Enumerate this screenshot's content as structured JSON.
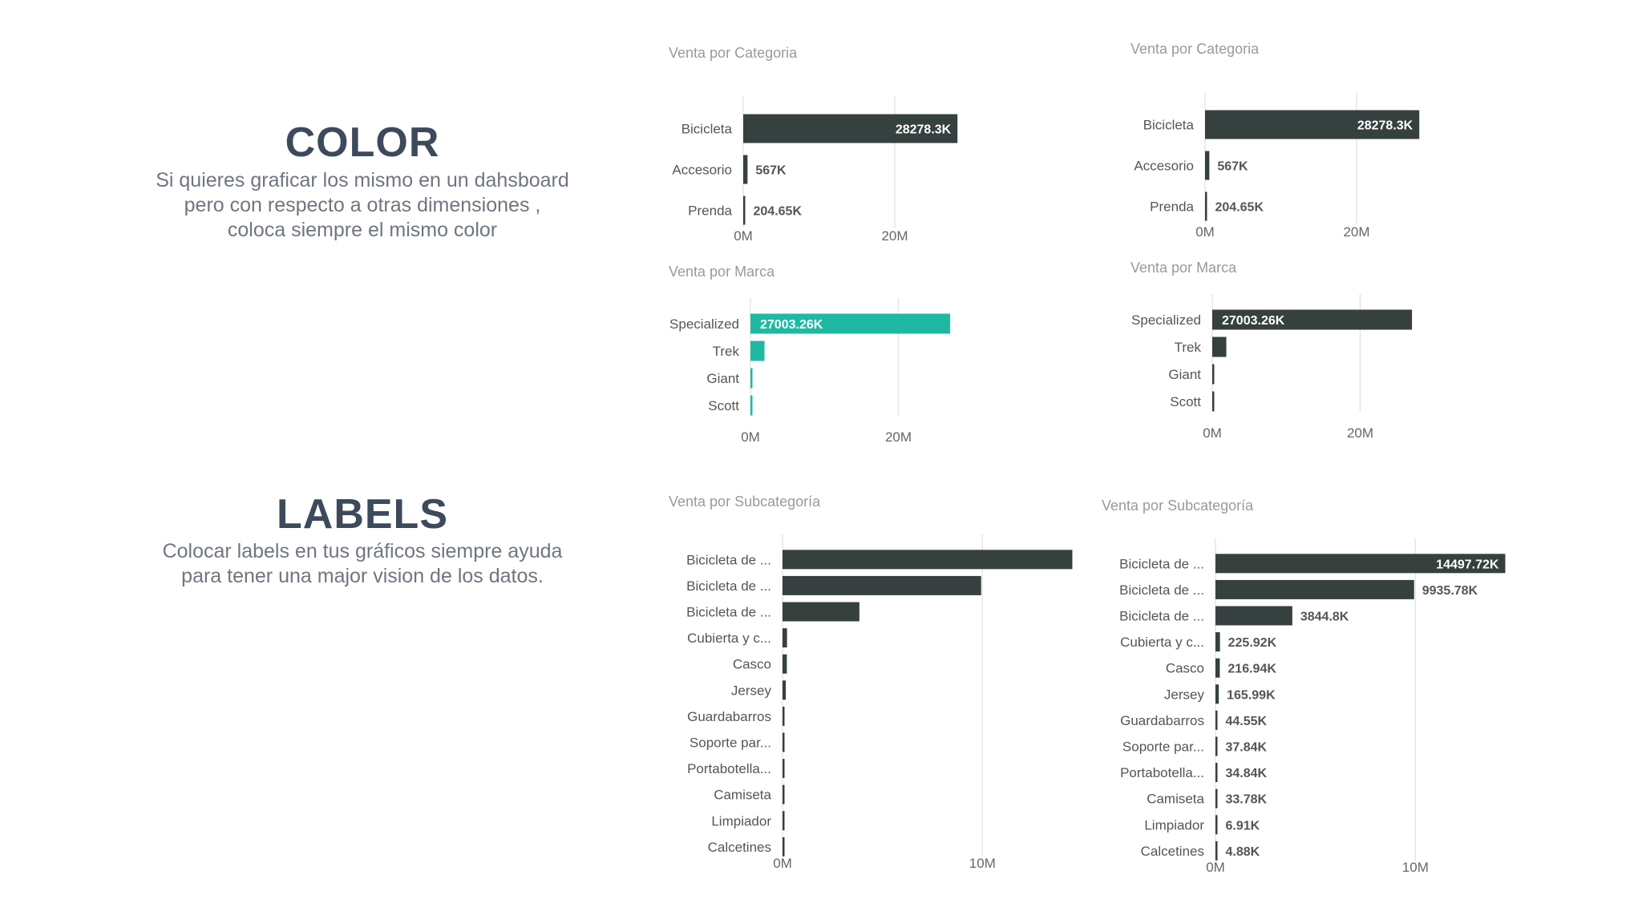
{
  "sections": {
    "color": {
      "title": "COLOR",
      "description": [
        "Si quieres graficar los mismo en un dahsboard",
        "pero con respecto a otras dimensiones ,",
        "coloca siempre el mismo color"
      ]
    },
    "labels": {
      "title": "LABELS",
      "description": [
        "Colocar labels en tus gráficos siempre ayuda",
        "para tener una major vision de los datos."
      ]
    }
  },
  "colors": {
    "dark_bar": "#35403f",
    "accent_bar": "#1fb9a3",
    "label_inside": "#ffffff",
    "label_outside": "#555555"
  },
  "chart_data": [
    {
      "id": "cat-left",
      "type": "bar",
      "orientation": "horizontal",
      "title": "Venta por Categoria",
      "categories": [
        "Bicicleta",
        "Accesorio",
        "Prenda"
      ],
      "values": [
        28278300,
        567000,
        204650
      ],
      "labels": [
        "28278.3K",
        "567K",
        "204.65K"
      ],
      "xticks": [
        {
          "v": 0,
          "t": "0M"
        },
        {
          "v": 20000000,
          "t": "20M"
        }
      ],
      "xlim": [
        0,
        40000000
      ],
      "color": "#35403f",
      "grid": true
    },
    {
      "id": "cat-right",
      "type": "bar",
      "orientation": "horizontal",
      "title": "Venta por Categoria",
      "categories": [
        "Bicicleta",
        "Accesorio",
        "Prenda"
      ],
      "values": [
        28278300,
        567000,
        204650
      ],
      "labels": [
        "28278.3K",
        "567K",
        "204.65K"
      ],
      "xticks": [
        {
          "v": 0,
          "t": "0M"
        },
        {
          "v": 20000000,
          "t": "20M"
        }
      ],
      "xlim": [
        0,
        40000000
      ],
      "color": "#35403f",
      "grid": true
    },
    {
      "id": "marca-left",
      "type": "bar",
      "orientation": "horizontal",
      "title": "Venta por Marca",
      "categories": [
        "Specialized",
        "Trek",
        "Giant",
        "Scott"
      ],
      "values": [
        27003260,
        1900000,
        250000,
        200000
      ],
      "labels": [
        "27003.26K",
        "",
        "",
        ""
      ],
      "xticks": [
        {
          "v": 0,
          "t": "0M"
        },
        {
          "v": 20000000,
          "t": "20M"
        }
      ],
      "xlim": [
        0,
        40000000
      ],
      "color": "#1fb9a3",
      "grid": true
    },
    {
      "id": "marca-right",
      "type": "bar",
      "orientation": "horizontal",
      "title": "Venta por Marca",
      "categories": [
        "Specialized",
        "Trek",
        "Giant",
        "Scott"
      ],
      "values": [
        27003260,
        1900000,
        250000,
        200000
      ],
      "labels": [
        "27003.26K",
        "",
        "",
        ""
      ],
      "xticks": [
        {
          "v": 0,
          "t": "0M"
        },
        {
          "v": 20000000,
          "t": "20M"
        }
      ],
      "xlim": [
        0,
        40000000
      ],
      "color": "#35403f",
      "grid": true
    },
    {
      "id": "sub-left",
      "type": "bar",
      "orientation": "horizontal",
      "title": "Venta por Subcategoría",
      "categories": [
        "Bicicleta de ...",
        "Bicicleta de ...",
        "Bicicleta de ...",
        "Cubierta y c...",
        "Casco",
        "Jersey",
        "Guardabarros",
        "Soporte par...",
        "Portabotella...",
        "Camiseta",
        "Limpiador",
        "Calcetines"
      ],
      "values": [
        14497720,
        9935780,
        3844800,
        225920,
        216940,
        165990,
        44550,
        37840,
        34840,
        33780,
        6910,
        4880
      ],
      "labels": [
        "",
        "",
        "",
        "",
        "",
        "",
        "",
        "",
        "",
        "",
        "",
        ""
      ],
      "xticks": [
        {
          "v": 0,
          "t": "0M"
        },
        {
          "v": 10000000,
          "t": "10M"
        }
      ],
      "xlim": [
        0,
        15000000
      ],
      "color": "#35403f",
      "grid": true
    },
    {
      "id": "sub-right",
      "type": "bar",
      "orientation": "horizontal",
      "title": "Venta por Subcategoría",
      "categories": [
        "Bicicleta de ...",
        "Bicicleta de ...",
        "Bicicleta de ...",
        "Cubierta y c...",
        "Casco",
        "Jersey",
        "Guardabarros",
        "Soporte par...",
        "Portabotella...",
        "Camiseta",
        "Limpiador",
        "Calcetines"
      ],
      "values": [
        14497720,
        9935780,
        3844800,
        225920,
        216940,
        165990,
        44550,
        37840,
        34840,
        33780,
        6910,
        4880
      ],
      "labels": [
        "14497.72K",
        "9935.78K",
        "3844.8K",
        "225.92K",
        "216.94K",
        "165.99K",
        "44.55K",
        "37.84K",
        "34.84K",
        "33.78K",
        "6.91K",
        "4.88K"
      ],
      "xticks": [
        {
          "v": 0,
          "t": "0M"
        },
        {
          "v": 10000000,
          "t": "10M"
        }
      ],
      "xlim": [
        0,
        15000000
      ],
      "color": "#35403f",
      "grid": true
    }
  ]
}
